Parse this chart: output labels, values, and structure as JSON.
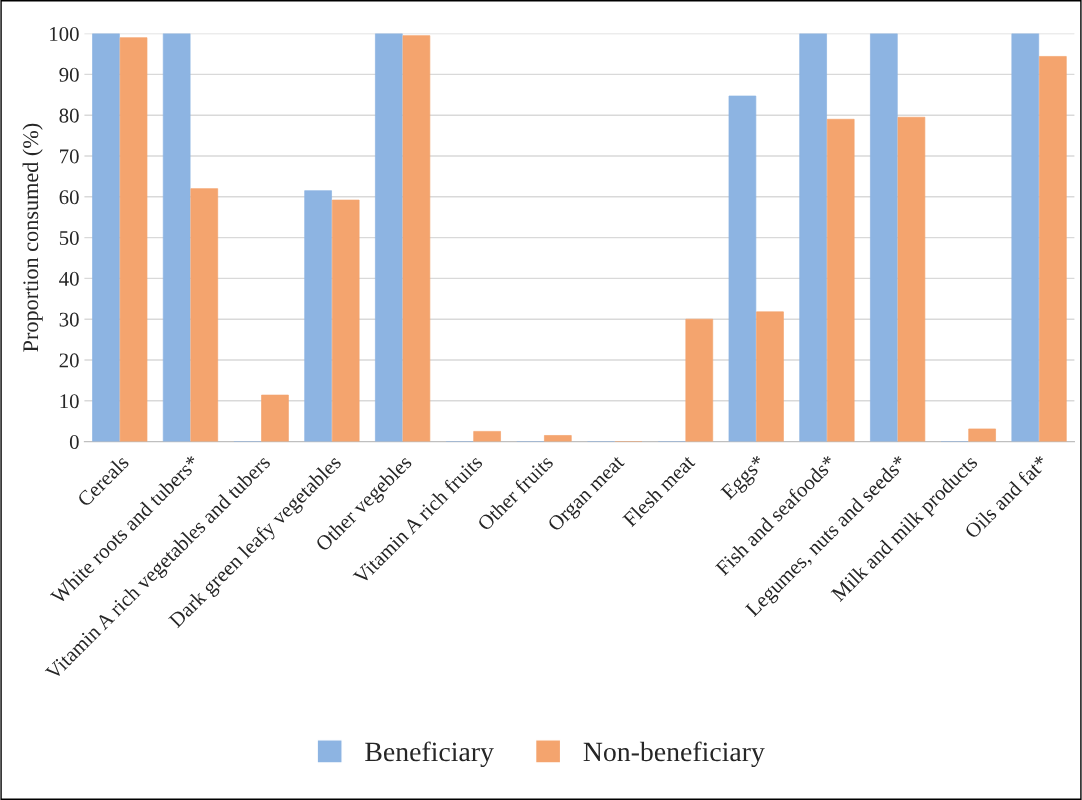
{
  "chart_data": {
    "type": "bar",
    "ylabel": "Proportion consumed (%)",
    "categories": [
      "Cereals",
      "White roots and tubers*",
      "Vitamin A rich vegetables and tubers",
      "Dark green leafy vegetables",
      "Other vegebles",
      "Vitamin A rich fruits",
      "Other fruits",
      "Organ meat",
      "Flesh meat",
      "Eggs*",
      "Fish and seafoods*",
      "Legumes, nuts and seeds*",
      "Milk and milk products",
      "Oils and fat*"
    ],
    "series": [
      {
        "name": "Beneficiary",
        "color": "#8db4e2",
        "values": [
          100,
          100,
          0,
          61.5,
          100,
          0,
          0,
          0,
          0,
          84.7,
          100,
          100,
          0,
          100
        ]
      },
      {
        "name": "Non-beneficiary",
        "color": "#f4a46e",
        "values": [
          99,
          62,
          11.4,
          59.2,
          99.5,
          2.5,
          1.5,
          0,
          30,
          31.8,
          79,
          79.5,
          3.1,
          94.4
        ]
      }
    ],
    "ylim": [
      0,
      100
    ],
    "yticks": [
      0,
      10,
      20,
      30,
      40,
      50,
      60,
      70,
      80,
      90,
      100
    ],
    "grid": "y",
    "legend": "bottom"
  }
}
